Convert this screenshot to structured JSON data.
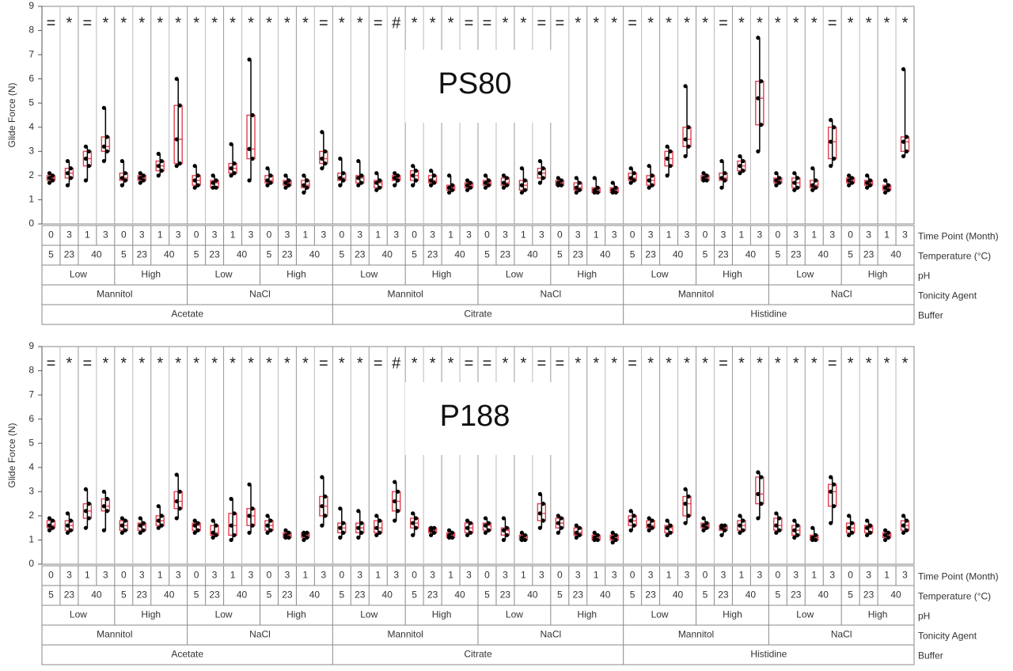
{
  "chart_data": [
    {
      "type": "boxplot",
      "title": "PS80",
      "ylabel": "Glide Force (N)",
      "ylim": [
        0,
        9
      ],
      "yticks": [
        "0",
        "1",
        "2",
        "3",
        "4",
        "5",
        "6",
        "7",
        "8",
        "9"
      ],
      "grid": false,
      "group_rows": {
        "time_point": [
          "0",
          "3",
          "1",
          "3",
          "0",
          "3",
          "1",
          "3",
          "0",
          "3",
          "1",
          "3",
          "0",
          "3",
          "1",
          "3",
          "0",
          "3",
          "1",
          "3",
          "0",
          "3",
          "1",
          "3",
          "0",
          "3",
          "1",
          "3",
          "0",
          "3",
          "1",
          "3",
          "0",
          "3",
          "1",
          "3",
          "0",
          "3",
          "1",
          "3",
          "0",
          "3",
          "1",
          "3",
          "0",
          "3",
          "1",
          "3"
        ],
        "temperature": [
          "5",
          "23",
          "40",
          "5",
          "23",
          "40",
          "5",
          "23",
          "40",
          "5",
          "23",
          "40",
          "5",
          "23",
          "40",
          "5",
          "23",
          "40",
          "5",
          "23",
          "40",
          "5",
          "23",
          "40",
          "5",
          "23",
          "40",
          "5",
          "23",
          "40",
          "5",
          "23",
          "40",
          "5",
          "23",
          "40"
        ],
        "ph": [
          "Low",
          "High",
          "Low",
          "High",
          "Low",
          "High",
          "Low",
          "High",
          "Low",
          "High",
          "Low",
          "High"
        ],
        "tonicity_agent": [
          "Mannitol",
          "NaCl",
          "Mannitol",
          "NaCl",
          "Mannitol",
          "NaCl"
        ],
        "buffer": [
          "Acetate",
          "Citrate",
          "Histidine"
        ]
      },
      "row_labels": [
        "Time Point (Month)",
        "Temperature (°C)",
        "pH",
        "Tonicity Agent",
        "Buffer"
      ],
      "markers": [
        "=",
        "*",
        "=",
        "*",
        "*",
        "*",
        "*",
        "*",
        "*",
        "*",
        "*",
        "*",
        "*",
        "*",
        "*",
        "=",
        "*",
        "*",
        "=",
        "#",
        "*",
        "*",
        "*",
        "=",
        "=",
        "*",
        "*",
        "=",
        "=",
        "*",
        "*",
        "*",
        "=",
        "*",
        "*",
        "*",
        "*",
        "=",
        "*",
        "*",
        "*",
        "*",
        "*",
        "=",
        "*",
        "*",
        "*",
        "*"
      ],
      "series": [
        {
          "q1": 1.8,
          "median": 1.9,
          "q3": 2.0,
          "min": 1.7,
          "max": 2.1
        },
        {
          "q1": 1.9,
          "median": 2.1,
          "q3": 2.3,
          "min": 1.6,
          "max": 2.6
        },
        {
          "q1": 2.4,
          "median": 2.7,
          "q3": 3.0,
          "min": 1.8,
          "max": 3.2
        },
        {
          "q1": 3.0,
          "median": 3.2,
          "q3": 3.6,
          "min": 2.6,
          "max": 4.8
        },
        {
          "q1": 1.8,
          "median": 1.9,
          "q3": 2.1,
          "min": 1.6,
          "max": 2.6
        },
        {
          "q1": 1.8,
          "median": 1.9,
          "q3": 2.0,
          "min": 1.7,
          "max": 2.1
        },
        {
          "q1": 2.2,
          "median": 2.4,
          "q3": 2.6,
          "min": 2.0,
          "max": 2.9
        },
        {
          "q1": 2.5,
          "median": 3.5,
          "q3": 4.9,
          "min": 2.4,
          "max": 6.0
        },
        {
          "q1": 1.6,
          "median": 1.8,
          "q3": 2.0,
          "min": 1.5,
          "max": 2.4
        },
        {
          "q1": 1.5,
          "median": 1.7,
          "q3": 1.8,
          "min": 1.5,
          "max": 2.0
        },
        {
          "q1": 2.1,
          "median": 2.3,
          "q3": 2.5,
          "min": 2.0,
          "max": 3.3
        },
        {
          "q1": 2.7,
          "median": 3.1,
          "q3": 4.5,
          "min": 1.8,
          "max": 6.8
        },
        {
          "q1": 1.7,
          "median": 1.8,
          "q3": 2.0,
          "min": 1.6,
          "max": 2.3
        },
        {
          "q1": 1.6,
          "median": 1.7,
          "q3": 1.8,
          "min": 1.5,
          "max": 2.0
        },
        {
          "q1": 1.5,
          "median": 1.6,
          "q3": 1.8,
          "min": 1.3,
          "max": 2.0
        },
        {
          "q1": 2.5,
          "median": 2.7,
          "q3": 3.0,
          "min": 2.3,
          "max": 3.8
        },
        {
          "q1": 1.8,
          "median": 1.9,
          "q3": 2.1,
          "min": 1.6,
          "max": 2.7
        },
        {
          "q1": 1.7,
          "median": 1.9,
          "q3": 2.0,
          "min": 1.6,
          "max": 2.6
        },
        {
          "q1": 1.5,
          "median": 1.7,
          "q3": 1.8,
          "min": 1.4,
          "max": 2.1
        },
        {
          "q1": 1.8,
          "median": 1.9,
          "q3": 2.0,
          "min": 1.6,
          "max": 2.1
        },
        {
          "q1": 1.8,
          "median": 2.0,
          "q3": 2.2,
          "min": 1.6,
          "max": 2.4
        },
        {
          "q1": 1.7,
          "median": 1.8,
          "q3": 2.0,
          "min": 1.6,
          "max": 2.2
        },
        {
          "q1": 1.4,
          "median": 1.5,
          "q3": 1.6,
          "min": 1.3,
          "max": 2.0
        },
        {
          "q1": 1.5,
          "median": 1.6,
          "q3": 1.7,
          "min": 1.4,
          "max": 1.8
        },
        {
          "q1": 1.6,
          "median": 1.7,
          "q3": 1.8,
          "min": 1.5,
          "max": 2.0
        },
        {
          "q1": 1.6,
          "median": 1.7,
          "q3": 1.9,
          "min": 1.5,
          "max": 2.0
        },
        {
          "q1": 1.4,
          "median": 1.6,
          "q3": 1.8,
          "min": 1.3,
          "max": 2.3
        },
        {
          "q1": 1.9,
          "median": 2.1,
          "q3": 2.3,
          "min": 1.7,
          "max": 2.6
        },
        {
          "q1": 1.6,
          "median": 1.7,
          "q3": 1.8,
          "min": 1.6,
          "max": 1.9
        },
        {
          "q1": 1.4,
          "median": 1.5,
          "q3": 1.7,
          "min": 1.3,
          "max": 1.9
        },
        {
          "q1": 1.3,
          "median": 1.4,
          "q3": 1.5,
          "min": 1.3,
          "max": 1.9
        },
        {
          "q1": 1.3,
          "median": 1.4,
          "q3": 1.5,
          "min": 1.3,
          "max": 1.7
        },
        {
          "q1": 1.8,
          "median": 1.9,
          "q3": 2.1,
          "min": 1.7,
          "max": 2.3
        },
        {
          "q1": 1.6,
          "median": 1.8,
          "q3": 2.0,
          "min": 1.5,
          "max": 2.4
        },
        {
          "q1": 2.4,
          "median": 2.7,
          "q3": 3.0,
          "min": 2.0,
          "max": 3.2
        },
        {
          "q1": 3.2,
          "median": 3.5,
          "q3": 4.0,
          "min": 2.8,
          "max": 5.7
        },
        {
          "q1": 1.8,
          "median": 1.9,
          "q3": 2.0,
          "min": 1.8,
          "max": 2.1
        },
        {
          "q1": 1.8,
          "median": 1.9,
          "q3": 2.1,
          "min": 1.5,
          "max": 2.6
        },
        {
          "q1": 2.2,
          "median": 2.4,
          "q3": 2.6,
          "min": 2.1,
          "max": 2.8
        },
        {
          "q1": 4.1,
          "median": 5.2,
          "q3": 5.9,
          "min": 3.0,
          "max": 7.7
        },
        {
          "q1": 1.7,
          "median": 1.8,
          "q3": 1.9,
          "min": 1.6,
          "max": 2.1
        },
        {
          "q1": 1.5,
          "median": 1.7,
          "q3": 1.9,
          "min": 1.4,
          "max": 2.1
        },
        {
          "q1": 1.5,
          "median": 1.6,
          "q3": 1.8,
          "min": 1.4,
          "max": 2.3
        },
        {
          "q1": 2.7,
          "median": 3.4,
          "q3": 4.0,
          "min": 2.4,
          "max": 4.3
        },
        {
          "q1": 1.7,
          "median": 1.8,
          "q3": 1.9,
          "min": 1.6,
          "max": 2.0
        },
        {
          "q1": 1.6,
          "median": 1.7,
          "q3": 1.8,
          "min": 1.5,
          "max": 2.0
        },
        {
          "q1": 1.4,
          "median": 1.5,
          "q3": 1.6,
          "min": 1.3,
          "max": 1.8
        },
        {
          "q1": 3.0,
          "median": 3.4,
          "q3": 3.6,
          "min": 2.8,
          "max": 6.4
        }
      ]
    },
    {
      "type": "boxplot",
      "title": "P188",
      "ylabel": "Glide Force (N)",
      "ylim": [
        0,
        9
      ],
      "yticks": [
        "0",
        "1",
        "2",
        "3",
        "4",
        "5",
        "6",
        "7",
        "8",
        "9"
      ],
      "grid": false,
      "group_rows": {
        "time_point": [
          "0",
          "3",
          "1",
          "3",
          "0",
          "3",
          "1",
          "3",
          "0",
          "3",
          "1",
          "3",
          "0",
          "3",
          "1",
          "3",
          "0",
          "3",
          "1",
          "3",
          "0",
          "3",
          "1",
          "3",
          "0",
          "3",
          "1",
          "3",
          "0",
          "3",
          "1",
          "3",
          "0",
          "3",
          "1",
          "3",
          "0",
          "3",
          "1",
          "3",
          "0",
          "3",
          "1",
          "3",
          "0",
          "3",
          "1",
          "3"
        ],
        "temperature": [
          "5",
          "23",
          "40",
          "5",
          "23",
          "40",
          "5",
          "23",
          "40",
          "5",
          "23",
          "40",
          "5",
          "23",
          "40",
          "5",
          "23",
          "40",
          "5",
          "23",
          "40",
          "5",
          "23",
          "40",
          "5",
          "23",
          "40",
          "5",
          "23",
          "40",
          "5",
          "23",
          "40",
          "5",
          "23",
          "40"
        ],
        "ph": [
          "Low",
          "High",
          "Low",
          "High",
          "Low",
          "High",
          "Low",
          "High",
          "Low",
          "High",
          "Low",
          "High"
        ],
        "tonicity_agent": [
          "Mannitol",
          "NaCl",
          "Mannitol",
          "NaCl",
          "Mannitol",
          "NaCl"
        ],
        "buffer": [
          "Acetate",
          "Citrate",
          "Histidine"
        ]
      },
      "row_labels": [
        "Time Point (Month)",
        "Temperature (°C)",
        "pH",
        "Tonicity Agent",
        "Buffer"
      ],
      "markers": [
        "=",
        "*",
        "=",
        "*",
        "*",
        "*",
        "*",
        "*",
        "*",
        "*",
        "*",
        "*",
        "*",
        "*",
        "*",
        "=",
        "*",
        "*",
        "=",
        "#",
        "*",
        "*",
        "*",
        "=",
        "=",
        "*",
        "*",
        "=",
        "=",
        "*",
        "*",
        "*",
        "=",
        "*",
        "*",
        "*",
        "*",
        "=",
        "*",
        "*",
        "*",
        "*",
        "*",
        "=",
        "*",
        "*",
        "*",
        "*"
      ],
      "series": [
        {
          "q1": 1.5,
          "median": 1.6,
          "q3": 1.8,
          "min": 1.4,
          "max": 1.9
        },
        {
          "q1": 1.4,
          "median": 1.6,
          "q3": 1.8,
          "min": 1.3,
          "max": 2.1
        },
        {
          "q1": 1.9,
          "median": 2.2,
          "q3": 2.5,
          "min": 1.5,
          "max": 3.1
        },
        {
          "q1": 2.2,
          "median": 2.4,
          "q3": 2.7,
          "min": 1.4,
          "max": 3.0
        },
        {
          "q1": 1.4,
          "median": 1.6,
          "q3": 1.8,
          "min": 1.3,
          "max": 1.9
        },
        {
          "q1": 1.4,
          "median": 1.6,
          "q3": 1.7,
          "min": 1.3,
          "max": 1.9
        },
        {
          "q1": 1.6,
          "median": 1.8,
          "q3": 2.0,
          "min": 1.5,
          "max": 2.4
        },
        {
          "q1": 2.3,
          "median": 2.6,
          "q3": 3.0,
          "min": 1.9,
          "max": 3.7
        },
        {
          "q1": 1.4,
          "median": 1.6,
          "q3": 1.7,
          "min": 1.3,
          "max": 1.8
        },
        {
          "q1": 1.2,
          "median": 1.3,
          "q3": 1.6,
          "min": 1.1,
          "max": 1.8
        },
        {
          "q1": 1.2,
          "median": 1.6,
          "q3": 2.1,
          "min": 1.0,
          "max": 2.7
        },
        {
          "q1": 1.6,
          "median": 2.0,
          "q3": 2.3,
          "min": 1.3,
          "max": 3.3
        },
        {
          "q1": 1.4,
          "median": 1.6,
          "q3": 1.8,
          "min": 1.3,
          "max": 2.0
        },
        {
          "q1": 1.1,
          "median": 1.2,
          "q3": 1.3,
          "min": 1.1,
          "max": 1.4
        },
        {
          "q1": 1.1,
          "median": 1.2,
          "q3": 1.3,
          "min": 1.0,
          "max": 1.3
        },
        {
          "q1": 2.0,
          "median": 2.4,
          "q3": 2.8,
          "min": 1.6,
          "max": 3.6
        },
        {
          "q1": 1.3,
          "median": 1.5,
          "q3": 1.7,
          "min": 1.1,
          "max": 2.3
        },
        {
          "q1": 1.3,
          "median": 1.5,
          "q3": 1.7,
          "min": 1.1,
          "max": 2.2
        },
        {
          "q1": 1.3,
          "median": 1.5,
          "q3": 1.8,
          "min": 1.2,
          "max": 2.0
        },
        {
          "q1": 2.2,
          "median": 2.6,
          "q3": 3.0,
          "min": 1.8,
          "max": 3.4
        },
        {
          "q1": 1.5,
          "median": 1.7,
          "q3": 1.9,
          "min": 1.2,
          "max": 2.1
        },
        {
          "q1": 1.3,
          "median": 1.4,
          "q3": 1.5,
          "min": 1.2,
          "max": 1.5
        },
        {
          "q1": 1.1,
          "median": 1.2,
          "q3": 1.3,
          "min": 1.1,
          "max": 1.4
        },
        {
          "q1": 1.3,
          "median": 1.5,
          "q3": 1.7,
          "min": 1.2,
          "max": 1.8
        },
        {
          "q1": 1.4,
          "median": 1.6,
          "q3": 1.7,
          "min": 1.3,
          "max": 1.9
        },
        {
          "q1": 1.2,
          "median": 1.4,
          "q3": 1.5,
          "min": 1.0,
          "max": 1.9
        },
        {
          "q1": 1.0,
          "median": 1.1,
          "q3": 1.2,
          "min": 1.0,
          "max": 1.3
        },
        {
          "q1": 1.8,
          "median": 2.1,
          "q3": 2.5,
          "min": 1.5,
          "max": 2.9
        },
        {
          "q1": 1.5,
          "median": 1.7,
          "q3": 1.9,
          "min": 1.3,
          "max": 2.0
        },
        {
          "q1": 1.2,
          "median": 1.3,
          "q3": 1.5,
          "min": 1.1,
          "max": 1.6
        },
        {
          "q1": 1.0,
          "median": 1.1,
          "q3": 1.2,
          "min": 1.0,
          "max": 1.3
        },
        {
          "q1": 1.0,
          "median": 1.1,
          "q3": 1.2,
          "min": 0.9,
          "max": 1.3
        },
        {
          "q1": 1.6,
          "median": 1.8,
          "q3": 2.0,
          "min": 1.4,
          "max": 2.2
        },
        {
          "q1": 1.5,
          "median": 1.6,
          "q3": 1.8,
          "min": 1.4,
          "max": 1.9
        },
        {
          "q1": 1.3,
          "median": 1.5,
          "q3": 1.6,
          "min": 1.2,
          "max": 1.8
        },
        {
          "q1": 2.0,
          "median": 2.5,
          "q3": 2.8,
          "min": 1.7,
          "max": 3.1
        },
        {
          "q1": 1.5,
          "median": 1.6,
          "q3": 1.7,
          "min": 1.4,
          "max": 1.9
        },
        {
          "q1": 1.4,
          "median": 1.5,
          "q3": 1.6,
          "min": 1.2,
          "max": 1.6
        },
        {
          "q1": 1.4,
          "median": 1.6,
          "q3": 1.8,
          "min": 1.3,
          "max": 2.0
        },
        {
          "q1": 2.5,
          "median": 2.9,
          "q3": 3.6,
          "min": 1.9,
          "max": 3.8
        },
        {
          "q1": 1.4,
          "median": 1.6,
          "q3": 1.9,
          "min": 1.3,
          "max": 2.1
        },
        {
          "q1": 1.2,
          "median": 1.4,
          "q3": 1.6,
          "min": 1.1,
          "max": 1.8
        },
        {
          "q1": 1.0,
          "median": 1.1,
          "q3": 1.2,
          "min": 1.0,
          "max": 1.5
        },
        {
          "q1": 2.4,
          "median": 3.0,
          "q3": 3.3,
          "min": 1.7,
          "max": 3.6
        },
        {
          "q1": 1.3,
          "median": 1.5,
          "q3": 1.7,
          "min": 1.2,
          "max": 2.0
        },
        {
          "q1": 1.3,
          "median": 1.5,
          "q3": 1.6,
          "min": 1.2,
          "max": 1.8
        },
        {
          "q1": 1.1,
          "median": 1.2,
          "q3": 1.3,
          "min": 1.0,
          "max": 1.4
        },
        {
          "q1": 1.4,
          "median": 1.6,
          "q3": 1.8,
          "min": 1.3,
          "max": 2.0
        }
      ]
    }
  ],
  "colors": {
    "box": "#e0404e",
    "whisker": "#000000",
    "point": "#000000",
    "frame": "#888888",
    "text": "#333333"
  }
}
